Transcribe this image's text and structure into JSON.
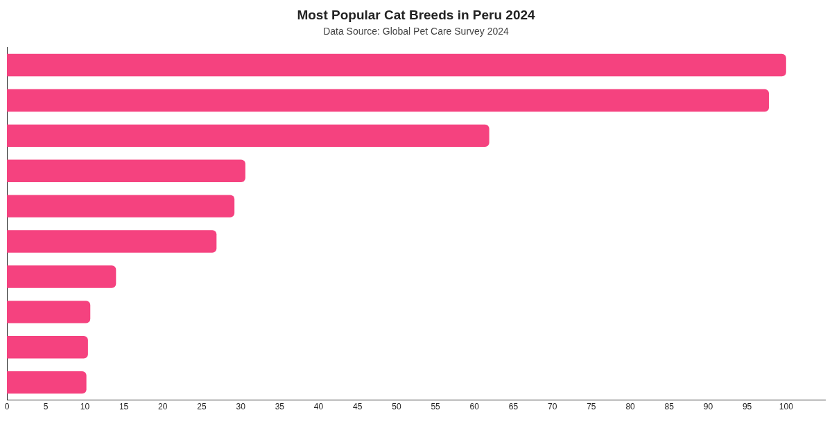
{
  "chart_data": {
    "type": "bar",
    "orientation": "horizontal",
    "title": "Most Popular Cat Breeds in Peru 2024",
    "subtitle": "Data Source: Global Pet Care Survey 2024",
    "categories": [
      null,
      null,
      null,
      null,
      null,
      null,
      null,
      null,
      null,
      null
    ],
    "values": [
      100,
      97.8,
      61.9,
      30.6,
      29.2,
      26.9,
      14.0,
      10.7,
      10.4,
      10.2
    ],
    "color": "#f5427f",
    "xlim": [
      0,
      105
    ],
    "xticks": [
      0,
      5,
      10,
      15,
      20,
      25,
      30,
      35,
      40,
      45,
      50,
      55,
      60,
      65,
      70,
      75,
      80,
      85,
      90,
      95,
      100
    ],
    "tick_labels": "x",
    "grid": false,
    "legend": false
  }
}
